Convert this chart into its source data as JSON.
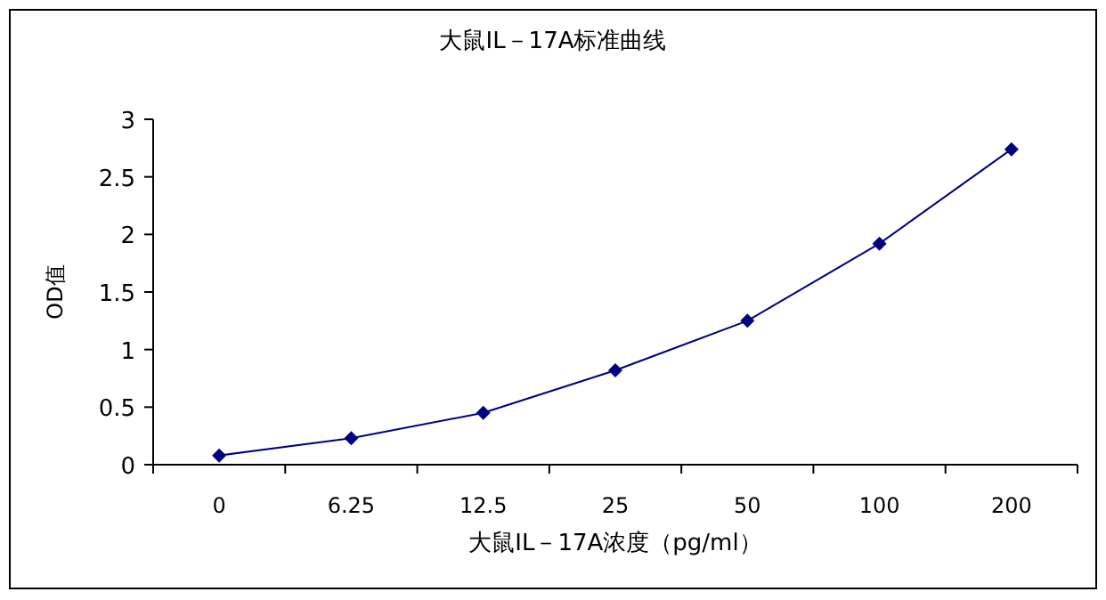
{
  "chart_data": {
    "type": "line",
    "title": "大鼠IL－17A标准曲线",
    "xlabel": "大鼠IL－17A浓度（pg/ml）",
    "ylabel": "OD值",
    "categories": [
      "0",
      "6.25",
      "12.5",
      "25",
      "50",
      "100",
      "200"
    ],
    "series": [
      {
        "color": "#000080",
        "values": [
          0.08,
          0.23,
          0.45,
          0.82,
          1.25,
          1.92,
          2.74
        ]
      }
    ],
    "ylim": [
      0,
      3
    ],
    "yticks": [
      0,
      0.5,
      1,
      1.5,
      2,
      2.5,
      3
    ],
    "marker": "diamond",
    "grid": false
  }
}
